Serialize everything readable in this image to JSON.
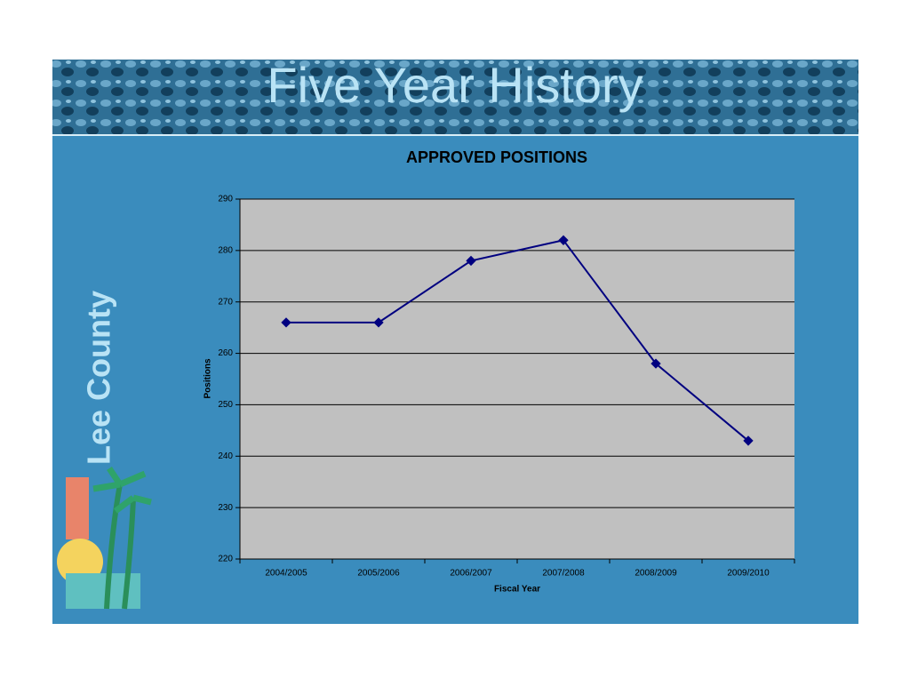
{
  "slide": {
    "title": "Five Year History",
    "logo_text": "Lee County"
  },
  "chart_data": {
    "type": "line",
    "title": "APPROVED POSITIONS",
    "x_label": "Fiscal Year",
    "y_label": "Positions",
    "categories": [
      "2004/2005",
      "2005/2006",
      "2006/2007",
      "2007/2008",
      "2008/2009",
      "2009/2010"
    ],
    "values": [
      266,
      266,
      278,
      282,
      258,
      243
    ],
    "color": "#000080",
    "ylim": [
      220,
      290
    ],
    "yticks": [
      220,
      230,
      240,
      250,
      260,
      270,
      280,
      290
    ],
    "grid": true
  }
}
